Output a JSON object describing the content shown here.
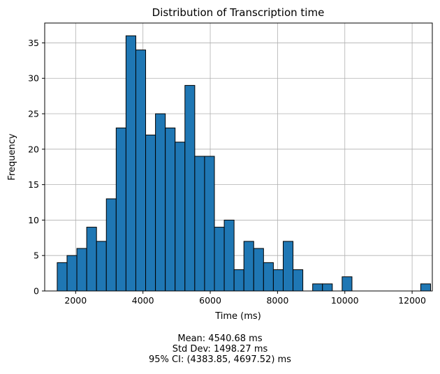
{
  "chart_data": {
    "type": "bar",
    "title": "Distribution of Transcription time",
    "xlabel": "Time (ms)",
    "ylabel": "Frequency",
    "xlim": [
      1080,
      12600
    ],
    "ylim": [
      0,
      37.8
    ],
    "xticks": [
      2000,
      4000,
      6000,
      8000,
      10000,
      12000
    ],
    "yticks": [
      0,
      5,
      10,
      15,
      20,
      25,
      30,
      35
    ],
    "grid": true,
    "bar_color": "#1f77b4",
    "edge_color": "#000000",
    "bin_start": 1452,
    "bin_width": 292,
    "values": [
      4,
      5,
      6,
      9,
      7,
      13,
      23,
      36,
      34,
      22,
      25,
      23,
      21,
      29,
      19,
      19,
      9,
      10,
      3,
      7,
      6,
      4,
      3,
      7,
      3,
      0,
      1,
      1,
      0,
      2,
      0,
      0,
      0,
      0,
      0,
      0,
      0,
      1
    ]
  },
  "stats": {
    "mean": "Mean: 4540.68 ms",
    "std": "Std Dev: 1498.27 ms",
    "ci": "95% CI: (4383.85, 4697.52) ms"
  }
}
